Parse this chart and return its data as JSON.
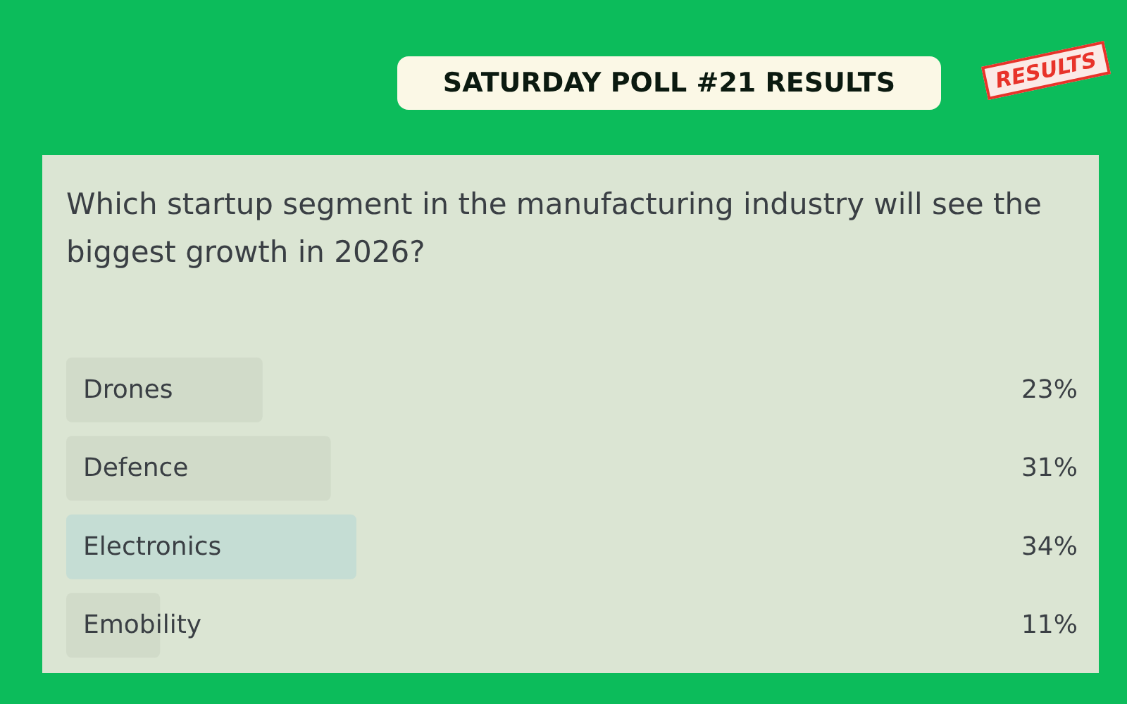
{
  "chart_data": {
    "type": "bar",
    "orientation": "horizontal",
    "title": "SATURDAY POLL #21 RESULTS",
    "subtitle": "Which startup segment in the manufacturing industry will see the biggest growth in 2026?",
    "categories": [
      "Drones",
      "Defence",
      "Electronics",
      "Emobility"
    ],
    "values": [
      23,
      31,
      34,
      11
    ],
    "value_labels": [
      "23%",
      "31%",
      "34%",
      "11%"
    ],
    "colors": [
      "#d1dbc9",
      "#d1dbc9",
      "#c5ddd4",
      "#d1dbc9"
    ],
    "annotations": [
      "RESULTS"
    ]
  }
}
